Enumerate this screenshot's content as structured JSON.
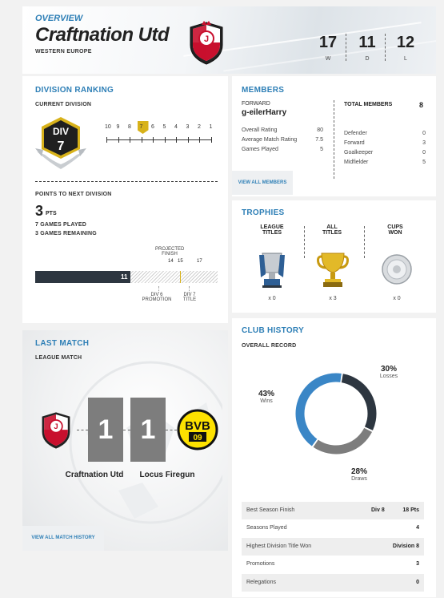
{
  "header": {
    "section_title": "OVERVIEW",
    "club_name": "Craftnation Utd",
    "region": "WESTERN EUROPE",
    "stats": [
      {
        "value": "17",
        "label": "W"
      },
      {
        "value": "11",
        "label": "D"
      },
      {
        "value": "12",
        "label": "L"
      }
    ]
  },
  "division_ranking": {
    "title": "DIVISION RANKING",
    "current_division_label": "CURRENT DIVISION",
    "badge_top": "DIV",
    "badge_num": "7",
    "scale": [
      "10",
      "9",
      "8",
      "7",
      "6",
      "5",
      "4",
      "3",
      "2",
      "1"
    ],
    "current_index": 3,
    "points_label": "POINTS TO NEXT DIVISION",
    "points_value": "3",
    "points_unit": "PTS",
    "games_played": "7 GAMES PLAYED",
    "games_remaining": "3 GAMES REMAINING",
    "projected_label_1": "PROJECTED",
    "projected_label_2": "FINISH",
    "bar_ticks": [
      "14",
      "15",
      "17"
    ],
    "current_points": "11",
    "bar_max": 21,
    "promotion_label_1": "DIV 6",
    "promotion_label_2": "PROMOTION",
    "title_label_1": "DIV 7",
    "title_label_2": "TITLE"
  },
  "members": {
    "title": "MEMBERS",
    "position": "FORWARD",
    "player": "g-eilerHarry",
    "stats": [
      {
        "label": "Overall Rating",
        "value": "80"
      },
      {
        "label": "Average Match Rating",
        "value": "7.5"
      },
      {
        "label": "Games Played",
        "value": "5"
      }
    ],
    "view_all": "VIEW ALL MEMBERS",
    "total_label": "TOTAL MEMBERS",
    "total_value": "8",
    "breakdown": [
      {
        "label": "Defender",
        "value": "0"
      },
      {
        "label": "Forward",
        "value": "3"
      },
      {
        "label": "Goalkeeper",
        "value": "0"
      },
      {
        "label": "Midfielder",
        "value": "5"
      }
    ]
  },
  "trophies": {
    "title": "TROPHIES",
    "items": [
      {
        "line1": "LEAGUE",
        "line2": "TITLES",
        "count": "x 0"
      },
      {
        "line1": "ALL",
        "line2": "TITLES",
        "count": "x 3"
      },
      {
        "line1": "CUPS",
        "line2": "WON",
        "count": "x 0"
      }
    ]
  },
  "last_match": {
    "title": "LAST MATCH",
    "type": "LEAGUE MATCH",
    "home_team": "Craftnation Utd",
    "away_team": "Locus Firegun",
    "home_score": "1",
    "away_score": "1",
    "away_logo_text_top": "BVB",
    "away_logo_text_bottom": "09",
    "view_all": "VIEW ALL MATCH HISTORY"
  },
  "club_history": {
    "title": "CLUB HISTORY",
    "record_label": "OVERALL RECORD",
    "wins_pct": "43%",
    "wins_label": "Wins",
    "losses_pct": "30%",
    "losses_label": "Losses",
    "draws_pct": "28%",
    "draws_label": "Draws",
    "rows": [
      {
        "label": "Best Season Finish",
        "mid": "Div 8",
        "value": "18 Pts"
      },
      {
        "label": "Seasons Played",
        "mid": "",
        "value": "4"
      },
      {
        "label": "Highest Division Title Won",
        "mid": "",
        "value": "Division 8"
      },
      {
        "label": "Promotions",
        "mid": "",
        "value": "3"
      },
      {
        "label": "Relegations",
        "mid": "",
        "value": "0"
      }
    ]
  },
  "chart_data": {
    "type": "pie",
    "categories": [
      "Wins",
      "Losses",
      "Draws"
    ],
    "values": [
      43,
      30,
      28
    ],
    "title": "",
    "colors": [
      "#3a86c6",
      "#2d3640",
      "#7d7d7d"
    ]
  },
  "colors": {
    "accent": "#2e7fb6",
    "gold": "#d8b21a",
    "dark_bar": "#2d3640"
  }
}
